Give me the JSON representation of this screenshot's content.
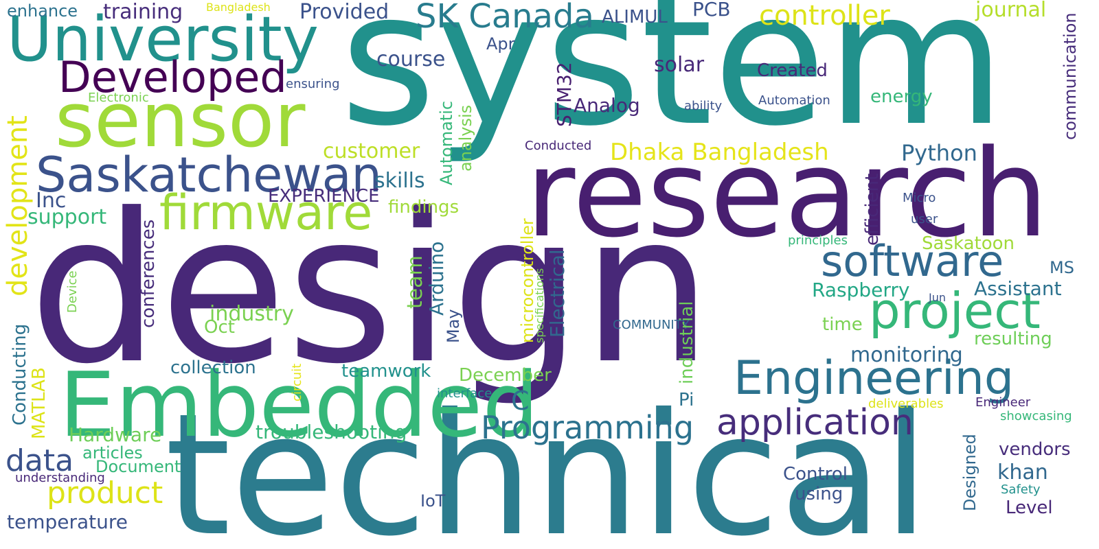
{
  "words": [
    {
      "text": "system",
      "color": "#21918c",
      "orientation": "horizontal"
    },
    {
      "text": "design",
      "color": "#482878",
      "orientation": "horizontal"
    },
    {
      "text": "research",
      "color": "#481f70",
      "orientation": "horizontal"
    },
    {
      "text": "technical",
      "color": "#2c7c8e",
      "orientation": "horizontal"
    },
    {
      "text": "Embedded",
      "color": "#35b779",
      "orientation": "horizontal"
    },
    {
      "text": "sensor",
      "color": "#a0da39",
      "orientation": "horizontal"
    },
    {
      "text": "University",
      "color": "#21918c",
      "orientation": "horizontal"
    },
    {
      "text": "Saskatchewan",
      "color": "#3b528b",
      "orientation": "horizontal"
    },
    {
      "text": "firmware",
      "color": "#a0da39",
      "orientation": "horizontal"
    },
    {
      "text": "Developed",
      "color": "#440154",
      "orientation": "horizontal"
    },
    {
      "text": "software",
      "color": "#31688e",
      "orientation": "horizontal"
    },
    {
      "text": "project",
      "color": "#35b779",
      "orientation": "horizontal"
    },
    {
      "text": "Engineering",
      "color": "#2c728e",
      "orientation": "horizontal"
    },
    {
      "text": "application",
      "color": "#472d7b",
      "orientation": "horizontal"
    },
    {
      "text": "Programming",
      "color": "#2c728e",
      "orientation": "horizontal"
    },
    {
      "text": "SK Canada",
      "color": "#287c8e",
      "orientation": "horizontal"
    },
    {
      "text": "controller",
      "color": "#dde318",
      "orientation": "horizontal"
    },
    {
      "text": "development",
      "color": "#e2e418",
      "orientation": "vertical"
    },
    {
      "text": "product",
      "color": "#dde318",
      "orientation": "horizontal"
    },
    {
      "text": "data",
      "color": "#3b528b",
      "orientation": "horizontal"
    },
    {
      "text": "Dhaka Bangladesh",
      "color": "#e5e419",
      "orientation": "horizontal"
    },
    {
      "text": "C",
      "color": "#2c728e",
      "orientation": "horizontal"
    },
    {
      "text": "training",
      "color": "#472d7b",
      "orientation": "horizontal"
    },
    {
      "text": "Provided",
      "color": "#3b528b",
      "orientation": "horizontal"
    },
    {
      "text": "enhance",
      "color": "#2c728e",
      "orientation": "horizontal"
    },
    {
      "text": "Bangladesh",
      "color": "#dde318",
      "orientation": "horizontal"
    },
    {
      "text": "ALIMUL",
      "color": "#3b528b",
      "orientation": "horizontal"
    },
    {
      "text": "PCB",
      "color": "#3b528b",
      "orientation": "horizontal"
    },
    {
      "text": "journal",
      "color": "#b5de2b",
      "orientation": "horizontal"
    },
    {
      "text": "communication",
      "color": "#472d7b",
      "orientation": "vertical"
    },
    {
      "text": "course",
      "color": "#3b528b",
      "orientation": "horizontal"
    },
    {
      "text": "Apr",
      "color": "#3b528b",
      "orientation": "horizontal"
    },
    {
      "text": "solar",
      "color": "#482878",
      "orientation": "horizontal"
    },
    {
      "text": "Created",
      "color": "#482878",
      "orientation": "horizontal"
    },
    {
      "text": "ensuring",
      "color": "#3b528b",
      "orientation": "horizontal"
    },
    {
      "text": "Electronic",
      "color": "#7ad151",
      "orientation": "horizontal"
    },
    {
      "text": "Automatic",
      "color": "#35b779",
      "orientation": "vertical"
    },
    {
      "text": "analysis",
      "color": "#7ad151",
      "orientation": "vertical"
    },
    {
      "text": "STM32",
      "color": "#481f70",
      "orientation": "vertical"
    },
    {
      "text": "Analog",
      "color": "#482878",
      "orientation": "horizontal"
    },
    {
      "text": "ability",
      "color": "#3b528b",
      "orientation": "horizontal"
    },
    {
      "text": "Automation",
      "color": "#3b528b",
      "orientation": "horizontal"
    },
    {
      "text": "energy",
      "color": "#35b779",
      "orientation": "horizontal"
    },
    {
      "text": "customer",
      "color": "#bddf26",
      "orientation": "horizontal"
    },
    {
      "text": "Conducted",
      "color": "#482878",
      "orientation": "horizontal"
    },
    {
      "text": "Python",
      "color": "#31688e",
      "orientation": "horizontal"
    },
    {
      "text": "skills",
      "color": "#2c728e",
      "orientation": "horizontal"
    },
    {
      "text": "Inc",
      "color": "#3b528b",
      "orientation": "horizontal"
    },
    {
      "text": "EXPERIENCE",
      "color": "#472d7b",
      "orientation": "horizontal"
    },
    {
      "text": "support",
      "color": "#35b779",
      "orientation": "horizontal"
    },
    {
      "text": "findings",
      "color": "#a0da39",
      "orientation": "horizontal"
    },
    {
      "text": "efficient",
      "color": "#482878",
      "orientation": "vertical"
    },
    {
      "text": "Micro",
      "color": "#3b528b",
      "orientation": "horizontal"
    },
    {
      "text": "user",
      "color": "#3b528b",
      "orientation": "horizontal"
    },
    {
      "text": "principles",
      "color": "#35b779",
      "orientation": "horizontal"
    },
    {
      "text": "Saskatoon",
      "color": "#a0da39",
      "orientation": "horizontal"
    },
    {
      "text": "MS",
      "color": "#31688e",
      "orientation": "horizontal"
    },
    {
      "text": "Raspberry",
      "color": "#22a785",
      "orientation": "horizontal"
    },
    {
      "text": "Assistant",
      "color": "#2c728e",
      "orientation": "horizontal"
    },
    {
      "text": "Jun",
      "color": "#3b528b",
      "orientation": "horizontal"
    },
    {
      "text": "time",
      "color": "#7ad151",
      "orientation": "horizontal"
    },
    {
      "text": "resulting",
      "color": "#6ece58",
      "orientation": "horizontal"
    },
    {
      "text": "COMMUNITY",
      "color": "#31688e",
      "orientation": "horizontal"
    },
    {
      "text": "monitoring",
      "color": "#31688e",
      "orientation": "horizontal"
    },
    {
      "text": "conferences",
      "color": "#472d7b",
      "orientation": "vertical"
    },
    {
      "text": "Device",
      "color": "#7ad151",
      "orientation": "vertical"
    },
    {
      "text": "industry",
      "color": "#7ad151",
      "orientation": "horizontal"
    },
    {
      "text": "Oct",
      "color": "#7ad151",
      "orientation": "horizontal"
    },
    {
      "text": "team",
      "color": "#7ad151",
      "orientation": "vertical"
    },
    {
      "text": "Arduino",
      "color": "#2c728e",
      "orientation": "vertical"
    },
    {
      "text": "May",
      "color": "#3b528b",
      "orientation": "vertical"
    },
    {
      "text": "microcontroller",
      "color": "#dde318",
      "orientation": "vertical"
    },
    {
      "text": "specifications",
      "color": "#7ad151",
      "orientation": "vertical"
    },
    {
      "text": "Electrical",
      "color": "#31688e",
      "orientation": "vertical"
    },
    {
      "text": "industrial",
      "color": "#6ece58",
      "orientation": "vertical"
    },
    {
      "text": "Conducting",
      "color": "#2c728e",
      "orientation": "vertical"
    },
    {
      "text": "MATLAB",
      "color": "#dde318",
      "orientation": "vertical"
    },
    {
      "text": "collection",
      "color": "#2c728e",
      "orientation": "horizontal"
    },
    {
      "text": "teamwork",
      "color": "#21918c",
      "orientation": "horizontal"
    },
    {
      "text": "circuit",
      "color": "#e5e419",
      "orientation": "vertical"
    },
    {
      "text": "December",
      "color": "#7ad151",
      "orientation": "horizontal"
    },
    {
      "text": "interface",
      "color": "#21918c",
      "orientation": "horizontal"
    },
    {
      "text": "deliverables",
      "color": "#dde318",
      "orientation": "horizontal"
    },
    {
      "text": "Engineer",
      "color": "#482878",
      "orientation": "horizontal"
    },
    {
      "text": "showcasing",
      "color": "#35b779",
      "orientation": "horizontal"
    },
    {
      "text": "Pi",
      "color": "#2c728e",
      "orientation": "horizontal"
    },
    {
      "text": "Hardware",
      "color": "#6ece58",
      "orientation": "horizontal"
    },
    {
      "text": "troubleshooting",
      "color": "#35b779",
      "orientation": "horizontal"
    },
    {
      "text": "articles",
      "color": "#35b779",
      "orientation": "horizontal"
    },
    {
      "text": "understanding",
      "color": "#482878",
      "orientation": "horizontal"
    },
    {
      "text": "Document",
      "color": "#35b779",
      "orientation": "horizontal"
    },
    {
      "text": "temperature",
      "color": "#3b528b",
      "orientation": "horizontal"
    },
    {
      "text": "IoT",
      "color": "#3b528b",
      "orientation": "horizontal"
    },
    {
      "text": "Designed",
      "color": "#31688e",
      "orientation": "vertical"
    },
    {
      "text": "vendors",
      "color": "#472d7b",
      "orientation": "horizontal"
    },
    {
      "text": "khan",
      "color": "#31688e",
      "orientation": "horizontal"
    },
    {
      "text": "Control",
      "color": "#3b528b",
      "orientation": "horizontal"
    },
    {
      "text": "using",
      "color": "#3b528b",
      "orientation": "horizontal"
    },
    {
      "text": "Safety",
      "color": "#21918c",
      "orientation": "horizontal"
    },
    {
      "text": "Level",
      "color": "#482878",
      "orientation": "horizontal"
    }
  ]
}
